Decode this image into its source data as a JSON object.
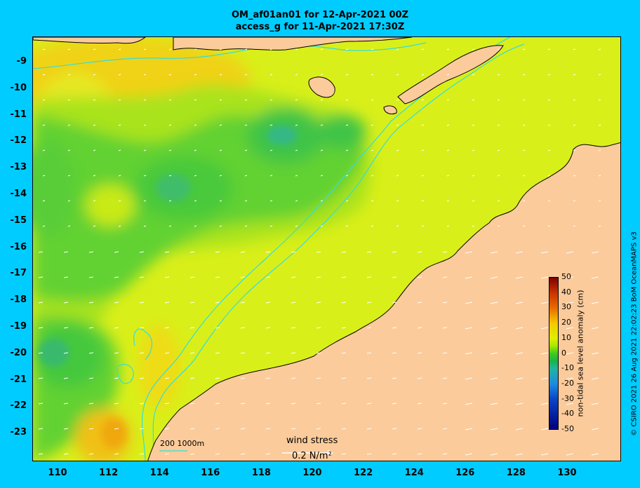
{
  "title": {
    "line1": "OM_af01an01 for 12-Apr-2021 00Z",
    "line2": "access_g for 11-Apr-2021 17:30Z"
  },
  "axes": {
    "lon_ticks": [
      "110",
      "112",
      "114",
      "116",
      "118",
      "120",
      "122",
      "124",
      "126",
      "128",
      "130"
    ],
    "lat_ticks": [
      "-9",
      "-10",
      "-11",
      "-12",
      "-13",
      "-14",
      "-15",
      "-16",
      "-17",
      "-18",
      "-19",
      "-20",
      "-21",
      "-22",
      "-23"
    ],
    "lon_range": [
      109,
      132
    ],
    "lat_range": [
      -23.9,
      -8.1
    ]
  },
  "colorbar": {
    "label": "non-tidal sea level anomaly (cm)",
    "ticks": [
      "50",
      "40",
      "30",
      "20",
      "10",
      "0",
      "-10",
      "-20",
      "-30",
      "-40",
      "-50"
    ],
    "range": [
      -50,
      50
    ]
  },
  "legend": {
    "depth_contours": "200  1000m",
    "wind_stress_title": "wind stress",
    "wind_stress_scale": "0.2 N/m²"
  },
  "credit": "© CSIRO 2021   26 Aug 2021 22:02:23 BoM OceanMAPS v3",
  "colors": {
    "background": "#00ccff",
    "land": "#fbcb9b",
    "contour_line": "#33dddd",
    "arrows": "#ffffff"
  }
}
